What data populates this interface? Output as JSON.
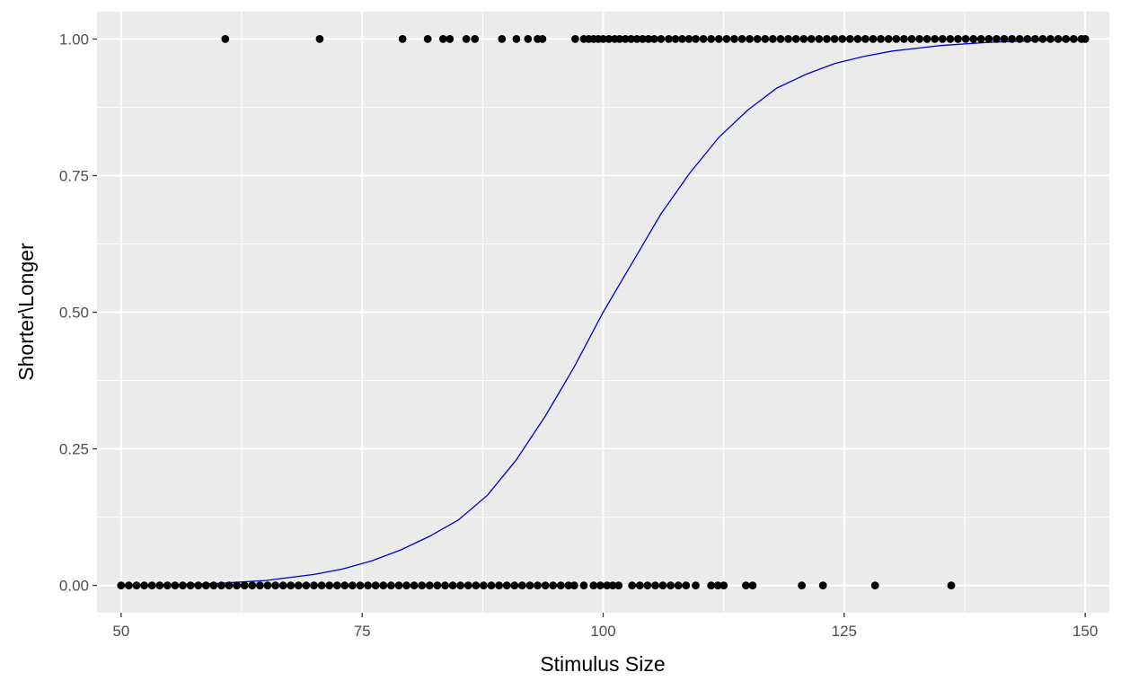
{
  "chart_data": {
    "type": "scatter",
    "title": "",
    "xlabel": "Stimulus Size",
    "ylabel": "Shorter\\Longer",
    "xlim": [
      47.5,
      152.5
    ],
    "ylim": [
      -0.05,
      1.05
    ],
    "x_ticks": [
      {
        "value": 50,
        "label": "50"
      },
      {
        "value": 75,
        "label": "75"
      },
      {
        "value": 100,
        "label": "100"
      },
      {
        "value": 125,
        "label": "125"
      },
      {
        "value": 150,
        "label": "150"
      }
    ],
    "y_ticks": [
      {
        "value": 0,
        "label": "0.00"
      },
      {
        "value": 0.25,
        "label": "0.25"
      },
      {
        "value": 0.5,
        "label": "0.50"
      },
      {
        "value": 0.75,
        "label": "0.75"
      },
      {
        "value": 1,
        "label": "1.00"
      }
    ],
    "grid": true,
    "legend": "none",
    "colors": {
      "panel": "#ebebeb",
      "grid": "#ffffff",
      "points": "#000000",
      "fit_line": "#0000cc"
    },
    "series": [
      {
        "type": "scatter",
        "points": [
          {
            "x": 60.8,
            "y": 1
          },
          {
            "x": 70.6,
            "y": 1
          },
          {
            "x": 79.2,
            "y": 1
          },
          {
            "x": 81.8,
            "y": 1
          },
          {
            "x": 83.4,
            "y": 1
          },
          {
            "x": 84.1,
            "y": 1
          },
          {
            "x": 85.8,
            "y": 1
          },
          {
            "x": 86.7,
            "y": 1
          },
          {
            "x": 89.5,
            "y": 1
          },
          {
            "x": 91.0,
            "y": 1
          },
          {
            "x": 92.2,
            "y": 1
          },
          {
            "x": 93.2,
            "y": 1
          },
          {
            "x": 93.7,
            "y": 1
          },
          {
            "x": 97.1,
            "y": 1
          },
          {
            "x": 98.0,
            "y": 1
          },
          {
            "x": 98.5,
            "y": 1
          },
          {
            "x": 99.0,
            "y": 1
          },
          {
            "x": 99.5,
            "y": 1
          },
          {
            "x": 100.0,
            "y": 1
          },
          {
            "x": 100.6,
            "y": 1
          },
          {
            "x": 101.2,
            "y": 1
          },
          {
            "x": 101.7,
            "y": 1
          },
          {
            "x": 102.3,
            "y": 1
          },
          {
            "x": 102.9,
            "y": 1
          },
          {
            "x": 103.5,
            "y": 1
          },
          {
            "x": 104.1,
            "y": 1
          },
          {
            "x": 104.7,
            "y": 1
          },
          {
            "x": 105.3,
            "y": 1
          },
          {
            "x": 106.0,
            "y": 1
          },
          {
            "x": 106.8,
            "y": 1
          },
          {
            "x": 107.5,
            "y": 1
          },
          {
            "x": 108.2,
            "y": 1
          },
          {
            "x": 108.9,
            "y": 1
          },
          {
            "x": 109.6,
            "y": 1
          },
          {
            "x": 110.4,
            "y": 1
          },
          {
            "x": 111.2,
            "y": 1
          },
          {
            "x": 112.0,
            "y": 1
          },
          {
            "x": 112.8,
            "y": 1
          },
          {
            "x": 113.6,
            "y": 1
          },
          {
            "x": 114.4,
            "y": 1
          },
          {
            "x": 115.2,
            "y": 1
          },
          {
            "x": 116.0,
            "y": 1
          },
          {
            "x": 116.8,
            "y": 1
          },
          {
            "x": 117.6,
            "y": 1
          },
          {
            "x": 118.4,
            "y": 1
          },
          {
            "x": 119.2,
            "y": 1
          },
          {
            "x": 120.0,
            "y": 1
          },
          {
            "x": 120.8,
            "y": 1
          },
          {
            "x": 121.6,
            "y": 1
          },
          {
            "x": 122.4,
            "y": 1
          },
          {
            "x": 123.2,
            "y": 1
          },
          {
            "x": 124.0,
            "y": 1
          },
          {
            "x": 124.8,
            "y": 1
          },
          {
            "x": 125.6,
            "y": 1
          },
          {
            "x": 126.4,
            "y": 1
          },
          {
            "x": 127.2,
            "y": 1
          },
          {
            "x": 128.0,
            "y": 1
          },
          {
            "x": 128.8,
            "y": 1
          },
          {
            "x": 129.6,
            "y": 1
          },
          {
            "x": 130.4,
            "y": 1
          },
          {
            "x": 131.2,
            "y": 1
          },
          {
            "x": 132.0,
            "y": 1
          },
          {
            "x": 132.8,
            "y": 1
          },
          {
            "x": 133.6,
            "y": 1
          },
          {
            "x": 134.4,
            "y": 1
          },
          {
            "x": 135.2,
            "y": 1
          },
          {
            "x": 136.0,
            "y": 1
          },
          {
            "x": 136.8,
            "y": 1
          },
          {
            "x": 137.6,
            "y": 1
          },
          {
            "x": 138.4,
            "y": 1
          },
          {
            "x": 139.2,
            "y": 1
          },
          {
            "x": 140.0,
            "y": 1
          },
          {
            "x": 140.8,
            "y": 1
          },
          {
            "x": 141.6,
            "y": 1
          },
          {
            "x": 142.4,
            "y": 1
          },
          {
            "x": 143.2,
            "y": 1
          },
          {
            "x": 144.0,
            "y": 1
          },
          {
            "x": 144.8,
            "y": 1
          },
          {
            "x": 145.6,
            "y": 1
          },
          {
            "x": 146.4,
            "y": 1
          },
          {
            "x": 147.2,
            "y": 1
          },
          {
            "x": 148.0,
            "y": 1
          },
          {
            "x": 148.8,
            "y": 1
          },
          {
            "x": 149.6,
            "y": 1
          },
          {
            "x": 150.0,
            "y": 1
          },
          {
            "x": 50.0,
            "y": 0
          },
          {
            "x": 50.8,
            "y": 0
          },
          {
            "x": 51.6,
            "y": 0
          },
          {
            "x": 52.4,
            "y": 0
          },
          {
            "x": 53.2,
            "y": 0
          },
          {
            "x": 54.0,
            "y": 0
          },
          {
            "x": 54.8,
            "y": 0
          },
          {
            "x": 55.6,
            "y": 0
          },
          {
            "x": 56.4,
            "y": 0
          },
          {
            "x": 57.2,
            "y": 0
          },
          {
            "x": 58.0,
            "y": 0
          },
          {
            "x": 58.8,
            "y": 0
          },
          {
            "x": 59.6,
            "y": 0
          },
          {
            "x": 60.4,
            "y": 0
          },
          {
            "x": 61.2,
            "y": 0
          },
          {
            "x": 62.0,
            "y": 0
          },
          {
            "x": 62.8,
            "y": 0
          },
          {
            "x": 63.6,
            "y": 0
          },
          {
            "x": 64.4,
            "y": 0
          },
          {
            "x": 65.2,
            "y": 0
          },
          {
            "x": 66.0,
            "y": 0
          },
          {
            "x": 66.8,
            "y": 0
          },
          {
            "x": 67.6,
            "y": 0
          },
          {
            "x": 68.4,
            "y": 0
          },
          {
            "x": 69.2,
            "y": 0
          },
          {
            "x": 70.0,
            "y": 0
          },
          {
            "x": 70.8,
            "y": 0
          },
          {
            "x": 71.6,
            "y": 0
          },
          {
            "x": 72.4,
            "y": 0
          },
          {
            "x": 73.2,
            "y": 0
          },
          {
            "x": 74.0,
            "y": 0
          },
          {
            "x": 74.8,
            "y": 0
          },
          {
            "x": 75.6,
            "y": 0
          },
          {
            "x": 76.4,
            "y": 0
          },
          {
            "x": 77.2,
            "y": 0
          },
          {
            "x": 78.0,
            "y": 0
          },
          {
            "x": 78.8,
            "y": 0
          },
          {
            "x": 79.6,
            "y": 0
          },
          {
            "x": 80.4,
            "y": 0
          },
          {
            "x": 81.2,
            "y": 0
          },
          {
            "x": 82.0,
            "y": 0
          },
          {
            "x": 82.8,
            "y": 0
          },
          {
            "x": 83.6,
            "y": 0
          },
          {
            "x": 84.4,
            "y": 0
          },
          {
            "x": 85.2,
            "y": 0
          },
          {
            "x": 86.0,
            "y": 0
          },
          {
            "x": 86.8,
            "y": 0
          },
          {
            "x": 87.6,
            "y": 0
          },
          {
            "x": 88.4,
            "y": 0
          },
          {
            "x": 89.2,
            "y": 0
          },
          {
            "x": 90.0,
            "y": 0
          },
          {
            "x": 90.8,
            "y": 0
          },
          {
            "x": 91.6,
            "y": 0
          },
          {
            "x": 92.4,
            "y": 0
          },
          {
            "x": 93.2,
            "y": 0
          },
          {
            "x": 94.0,
            "y": 0
          },
          {
            "x": 94.8,
            "y": 0
          },
          {
            "x": 95.6,
            "y": 0
          },
          {
            "x": 96.4,
            "y": 0
          },
          {
            "x": 97.0,
            "y": 0
          },
          {
            "x": 98.0,
            "y": 0
          },
          {
            "x": 99.0,
            "y": 0
          },
          {
            "x": 99.7,
            "y": 0
          },
          {
            "x": 100.4,
            "y": 0
          },
          {
            "x": 101.0,
            "y": 0
          },
          {
            "x": 101.6,
            "y": 0
          },
          {
            "x": 103.0,
            "y": 0
          },
          {
            "x": 103.8,
            "y": 0
          },
          {
            "x": 104.6,
            "y": 0
          },
          {
            "x": 105.4,
            "y": 0
          },
          {
            "x": 106.2,
            "y": 0
          },
          {
            "x": 107.0,
            "y": 0
          },
          {
            "x": 107.8,
            "y": 0
          },
          {
            "x": 108.6,
            "y": 0
          },
          {
            "x": 109.6,
            "y": 0
          },
          {
            "x": 111.2,
            "y": 0
          },
          {
            "x": 111.9,
            "y": 0
          },
          {
            "x": 112.5,
            "y": 0
          },
          {
            "x": 114.8,
            "y": 0
          },
          {
            "x": 115.5,
            "y": 0
          },
          {
            "x": 120.6,
            "y": 0
          },
          {
            "x": 122.8,
            "y": 0
          },
          {
            "x": 128.2,
            "y": 0
          },
          {
            "x": 136.1,
            "y": 0
          }
        ]
      },
      {
        "type": "line",
        "points": [
          {
            "x": 50,
            "y": 0.0004
          },
          {
            "x": 55,
            "y": 0.0013
          },
          {
            "x": 60,
            "y": 0.0036
          },
          {
            "x": 65,
            "y": 0.009
          },
          {
            "x": 70,
            "y": 0.02
          },
          {
            "x": 73,
            "y": 0.03
          },
          {
            "x": 76,
            "y": 0.045
          },
          {
            "x": 79,
            "y": 0.065
          },
          {
            "x": 82,
            "y": 0.09
          },
          {
            "x": 85,
            "y": 0.12
          },
          {
            "x": 88,
            "y": 0.165
          },
          {
            "x": 91,
            "y": 0.23
          },
          {
            "x": 94,
            "y": 0.31
          },
          {
            "x": 97,
            "y": 0.4
          },
          {
            "x": 100,
            "y": 0.5
          },
          {
            "x": 103,
            "y": 0.59
          },
          {
            "x": 106,
            "y": 0.68
          },
          {
            "x": 109,
            "y": 0.755
          },
          {
            "x": 112,
            "y": 0.82
          },
          {
            "x": 115,
            "y": 0.87
          },
          {
            "x": 118,
            "y": 0.91
          },
          {
            "x": 121,
            "y": 0.935
          },
          {
            "x": 124,
            "y": 0.955
          },
          {
            "x": 127,
            "y": 0.968
          },
          {
            "x": 130,
            "y": 0.978
          },
          {
            "x": 135,
            "y": 0.988
          },
          {
            "x": 140,
            "y": 0.994
          },
          {
            "x": 145,
            "y": 0.997
          },
          {
            "x": 150,
            "y": 0.998
          }
        ]
      }
    ]
  }
}
